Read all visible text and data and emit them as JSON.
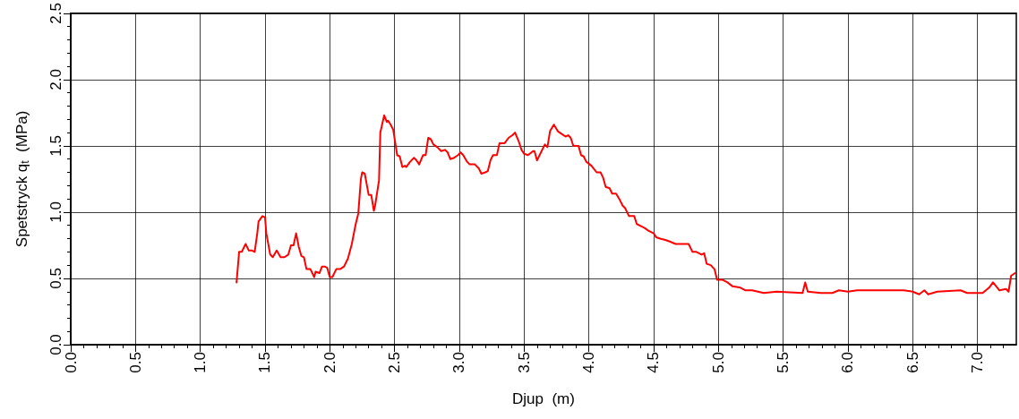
{
  "chart_data": {
    "type": "line",
    "xlabel": "Djup  (m)",
    "ylabel": "Spetstryck q$_{t}$  (MPa)",
    "xlim": [
      0,
      7.3
    ],
    "xticks": [
      {
        "value": 0,
        "label": "0.0"
      },
      {
        "value": 0.5,
        "label": "0.5"
      },
      {
        "value": 1,
        "label": "1.0"
      },
      {
        "value": 1.5,
        "label": "1.5"
      },
      {
        "value": 2,
        "label": "2.0"
      },
      {
        "value": 2.5,
        "label": "2.5"
      },
      {
        "value": 3,
        "label": "3.0"
      },
      {
        "value": 3.5,
        "label": "3.5"
      },
      {
        "value": 4,
        "label": "4.0"
      },
      {
        "value": 4.5,
        "label": "4.5"
      },
      {
        "value": 5,
        "label": "5.0"
      },
      {
        "value": 5.5,
        "label": "5.5"
      },
      {
        "value": 6,
        "label": "6.0"
      },
      {
        "value": 6.5,
        "label": "6.5"
      },
      {
        "value": 7,
        "label": "7.0"
      }
    ],
    "ylim": [
      0,
      2.5
    ],
    "yticks": [
      {
        "value": 0,
        "label": "0.0"
      },
      {
        "value": 0.5,
        "label": "0.5"
      },
      {
        "value": 1,
        "label": "1.0"
      },
      {
        "value": 1.5,
        "label": "1.5"
      },
      {
        "value": 2,
        "label": "2.0"
      },
      {
        "value": 2.5,
        "label": "2.5"
      }
    ],
    "grid": true,
    "marker": "none",
    "line_style": "solid",
    "series": [
      {
        "color": "#ff0000",
        "x": [
          1.28,
          1.3,
          1.32,
          1.35,
          1.375,
          1.4,
          1.42,
          1.44,
          1.45,
          1.48,
          1.5,
          1.51,
          1.54,
          1.56,
          1.59,
          1.62,
          1.65,
          1.68,
          1.7,
          1.72,
          1.74,
          1.76,
          1.78,
          1.8,
          1.82,
          1.85,
          1.88,
          1.89,
          1.92,
          1.94,
          1.96,
          1.98,
          2.0,
          2.02,
          2.05,
          2.08,
          2.11,
          2.14,
          2.17,
          2.2,
          2.22,
          2.24,
          2.25,
          2.27,
          2.3,
          2.32,
          2.34,
          2.35,
          2.38,
          2.39,
          2.42,
          2.44,
          2.45,
          2.47,
          2.49,
          2.52,
          2.54,
          2.56,
          2.58,
          2.59,
          2.62,
          2.65,
          2.67,
          2.69,
          2.72,
          2.74,
          2.76,
          2.78,
          2.8,
          2.83,
          2.86,
          2.89,
          2.91,
          2.93,
          2.96,
          2.99,
          3.01,
          3.03,
          3.06,
          3.08,
          3.12,
          3.15,
          3.17,
          3.2,
          3.22,
          3.24,
          3.26,
          3.29,
          3.31,
          3.35,
          3.38,
          3.41,
          3.43,
          3.46,
          3.48,
          3.5,
          3.53,
          3.57,
          3.58,
          3.6,
          3.63,
          3.66,
          3.68,
          3.7,
          3.73,
          3.76,
          3.79,
          3.82,
          3.84,
          3.86,
          3.88,
          3.92,
          3.94,
          3.96,
          3.98,
          4.02,
          4.06,
          4.09,
          4.11,
          4.13,
          4.16,
          4.18,
          4.21,
          4.24,
          4.26,
          4.28,
          4.31,
          4.35,
          4.37,
          4.41,
          4.43,
          4.46,
          4.5,
          4.52,
          4.55,
          4.59,
          4.62,
          4.67,
          4.73,
          4.77,
          4.8,
          4.83,
          4.87,
          4.89,
          4.91,
          4.94,
          4.97,
          4.99,
          5.03,
          5.07,
          5.11,
          5.17,
          5.21,
          5.26,
          5.35,
          5.45,
          5.65,
          5.67,
          5.69,
          5.79,
          5.88,
          5.93,
          6.0,
          6.07,
          6.25,
          6.43,
          6.5,
          6.55,
          6.59,
          6.62,
          6.69,
          6.87,
          6.92,
          7.04,
          7.09,
          7.12,
          7.17,
          7.22,
          7.24,
          7.26,
          7.29
        ],
        "values": [
          0.47,
          0.7,
          0.7,
          0.76,
          0.71,
          0.71,
          0.7,
          0.84,
          0.93,
          0.97,
          0.96,
          0.84,
          0.68,
          0.66,
          0.71,
          0.66,
          0.66,
          0.68,
          0.75,
          0.75,
          0.84,
          0.74,
          0.67,
          0.66,
          0.57,
          0.57,
          0.51,
          0.55,
          0.54,
          0.59,
          0.59,
          0.58,
          0.51,
          0.51,
          0.57,
          0.57,
          0.59,
          0.65,
          0.76,
          0.91,
          0.99,
          1.25,
          1.3,
          1.29,
          1.13,
          1.13,
          1.01,
          1.05,
          1.24,
          1.6,
          1.73,
          1.68,
          1.69,
          1.66,
          1.62,
          1.43,
          1.42,
          1.34,
          1.35,
          1.34,
          1.38,
          1.41,
          1.39,
          1.36,
          1.43,
          1.43,
          1.56,
          1.55,
          1.51,
          1.49,
          1.46,
          1.47,
          1.45,
          1.4,
          1.41,
          1.43,
          1.45,
          1.43,
          1.38,
          1.36,
          1.36,
          1.33,
          1.29,
          1.3,
          1.31,
          1.39,
          1.43,
          1.43,
          1.52,
          1.52,
          1.56,
          1.58,
          1.6,
          1.53,
          1.47,
          1.44,
          1.43,
          1.46,
          1.46,
          1.39,
          1.45,
          1.51,
          1.49,
          1.61,
          1.66,
          1.61,
          1.59,
          1.57,
          1.58,
          1.56,
          1.5,
          1.5,
          1.43,
          1.42,
          1.38,
          1.35,
          1.3,
          1.3,
          1.26,
          1.19,
          1.18,
          1.14,
          1.14,
          1.09,
          1.05,
          1.03,
          0.97,
          0.97,
          0.91,
          0.89,
          0.88,
          0.86,
          0.84,
          0.81,
          0.8,
          0.79,
          0.78,
          0.76,
          0.76,
          0.76,
          0.7,
          0.7,
          0.68,
          0.69,
          0.61,
          0.6,
          0.57,
          0.49,
          0.49,
          0.47,
          0.44,
          0.43,
          0.41,
          0.41,
          0.39,
          0.4,
          0.39,
          0.47,
          0.4,
          0.39,
          0.39,
          0.41,
          0.4,
          0.41,
          0.41,
          0.41,
          0.4,
          0.38,
          0.41,
          0.38,
          0.4,
          0.41,
          0.39,
          0.39,
          0.43,
          0.47,
          0.41,
          0.42,
          0.4,
          0.52,
          0.54
        ]
      }
    ]
  }
}
